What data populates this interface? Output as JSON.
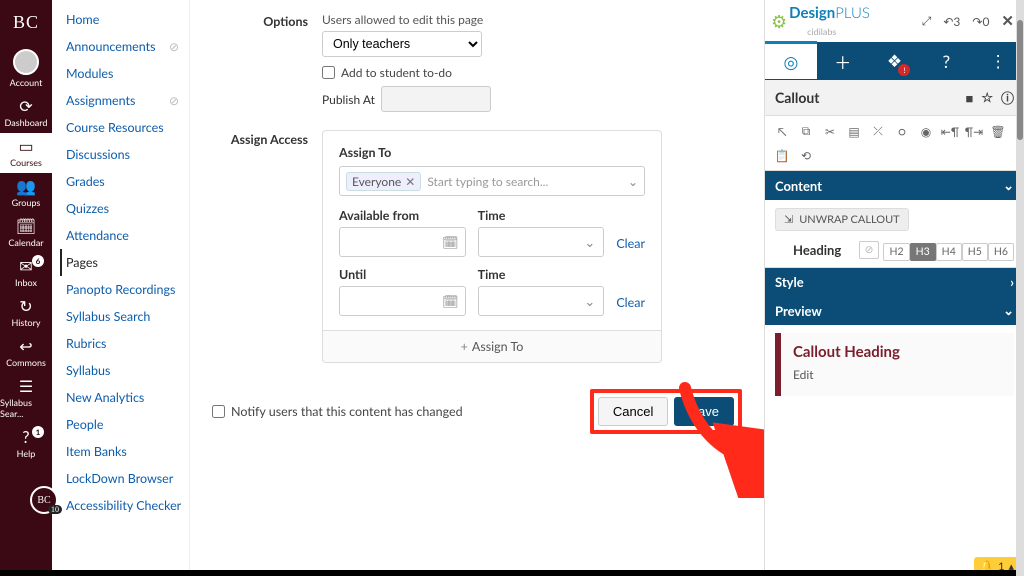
{
  "rail": {
    "logo": "BC",
    "items": [
      {
        "key": "account",
        "icon": "◉",
        "label": "Account"
      },
      {
        "key": "dashboard",
        "icon": "⟳",
        "label": "Dashboard"
      },
      {
        "key": "courses",
        "icon": "▭",
        "label": "Courses",
        "active": true
      },
      {
        "key": "groups",
        "icon": "👥",
        "label": "Groups"
      },
      {
        "key": "calendar",
        "icon": "🗓",
        "label": "Calendar"
      },
      {
        "key": "inbox",
        "icon": "✉",
        "label": "Inbox",
        "badge": "6"
      },
      {
        "key": "history",
        "icon": "↻",
        "label": "History"
      },
      {
        "key": "commons",
        "icon": "↩",
        "label": "Commons"
      },
      {
        "key": "syllabus",
        "icon": "☰",
        "label": "Syllabus Sear..."
      },
      {
        "key": "help",
        "icon": "?",
        "label": "Help",
        "badge": "1"
      }
    ],
    "float_badge": "10"
  },
  "courseNav": [
    {
      "label": "Home"
    },
    {
      "label": "Announcements",
      "hidden": true
    },
    {
      "label": "Modules"
    },
    {
      "label": "Assignments",
      "hidden": true
    },
    {
      "label": "Course Resources"
    },
    {
      "label": "Discussions"
    },
    {
      "label": "Grades"
    },
    {
      "label": "Quizzes"
    },
    {
      "label": "Attendance"
    },
    {
      "label": "Pages",
      "active": true
    },
    {
      "label": "Panopto Recordings"
    },
    {
      "label": "Syllabus Search"
    },
    {
      "label": "Rubrics"
    },
    {
      "label": "Syllabus"
    },
    {
      "label": "New Analytics"
    },
    {
      "label": "People"
    },
    {
      "label": "Item Banks"
    },
    {
      "label": "LockDown Browser"
    },
    {
      "label": "Accessibility Checker"
    }
  ],
  "form": {
    "options_label": "Options",
    "options_hint": "Users allowed to edit this page",
    "options_value": "Only teachers",
    "todo_label": "Add to student to-do",
    "publish_label": "Publish At",
    "assign_section": "Assign Access",
    "assign_to_label": "Assign To",
    "assign_tag": "Everyone",
    "assign_placeholder": "Start typing to search...",
    "available_from": "Available from",
    "until": "Until",
    "time": "Time",
    "clear": "Clear",
    "add_assign": "Assign To",
    "notify_label": "Notify users that this content has changed",
    "cancel": "Cancel",
    "save": "Save"
  },
  "arrow_color": "#ff2a1a",
  "dp": {
    "brand1": "Design",
    "brand2": "PLUS",
    "brand_sub": "cidilabs",
    "undo_count": "3",
    "redo_count": "0",
    "section": "Callout",
    "content_label": "Content",
    "unwrap_label": "UNWRAP CALLOUT",
    "heading_label": "Heading",
    "heading_levels": [
      "H2",
      "H3",
      "H4",
      "H5",
      "H6"
    ],
    "heading_selected": "H3",
    "style_label": "Style",
    "preview_label": "Preview",
    "preview_heading": "Callout Heading",
    "preview_body": "Edit",
    "flag_count": "1"
  }
}
